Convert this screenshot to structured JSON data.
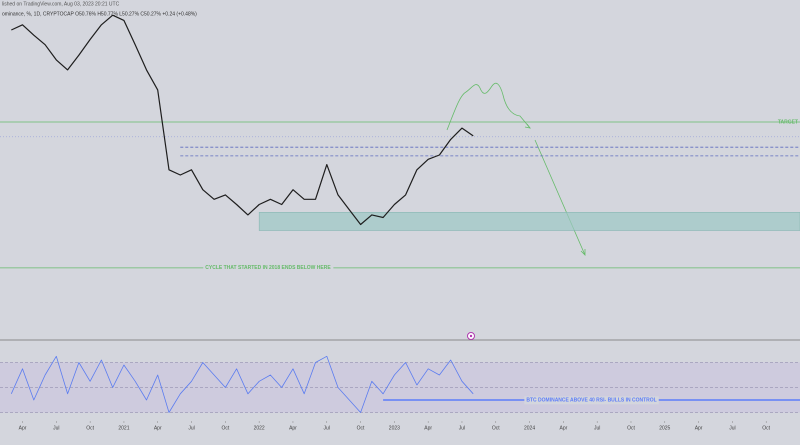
{
  "header": {
    "published": "lished on TradingView.com, Aug 03, 2023 20:21 UTC",
    "symbol": "ominance, %, 1D, CRYPTOCAP  O50.76%  H50.77%  L50.27%  C50.27%  +0.24 (+0.48%)"
  },
  "chart_data": [
    {
      "type": "line",
      "x": [
        "2020-03",
        "2020-04",
        "2020-05",
        "2020-06",
        "2020-07",
        "2020-08",
        "2020-09",
        "2020-10",
        "2020-11",
        "2020-12",
        "2021-01",
        "2021-02",
        "2021-03",
        "2021-04",
        "2021-05",
        "2021-06",
        "2021-07",
        "2021-08",
        "2021-09",
        "2021-10",
        "2021-11",
        "2021-12",
        "2022-01",
        "2022-02",
        "2022-03",
        "2022-04",
        "2022-05",
        "2022-06",
        "2022-07",
        "2022-08",
        "2022-09",
        "2022-10",
        "2022-11",
        "2022-12",
        "2023-01",
        "2023-02",
        "2023-03",
        "2023-04",
        "2023-05",
        "2023-06",
        "2023-07",
        "2023-08"
      ],
      "series": [
        {
          "color": "#1e1e1e",
          "values": [
            62.4,
            63.0,
            61.8,
            60.7,
            58.95,
            57.8,
            59.5,
            61.3,
            63.0,
            64.1,
            63.5,
            60.7,
            57.8,
            55.5,
            46.3,
            45.7,
            46.3,
            44.0,
            42.9,
            43.4,
            42.3,
            41.1,
            42.3,
            42.9,
            42.3,
            44.0,
            42.9,
            42.9,
            46.9,
            43.4,
            41.7,
            40.0,
            41.1,
            40.8,
            42.3,
            43.4,
            46.3,
            47.5,
            48.0,
            49.8,
            51.1,
            50.2
          ]
        }
      ],
      "xlim": [
        "2020-02",
        "2026-01"
      ],
      "ylim": [
        31.3,
        64.7
      ],
      "hlines": [
        {
          "value": 51.8,
          "color": "#66bb6a",
          "style": "solid",
          "label": "TARGET"
        },
        {
          "value": 50.1,
          "color": "#9fa8da",
          "style": "dotted"
        },
        {
          "value": 48.9,
          "color": "#5c6bc0",
          "style": "dashed",
          "start": "2021-06"
        },
        {
          "value": 47.9,
          "color": "#5c6bc0",
          "style": "dashed",
          "start": "2021-06"
        },
        {
          "value": 35.0,
          "color": "#66bb6a",
          "style": "solid",
          "label": "CYCLE THAT STARTED IN 2018 ENDS BELOW HERE"
        }
      ],
      "zone": {
        "from": 39.3,
        "to": 41.4,
        "start": "2022-01",
        "color": "#9cc7c4"
      }
    },
    {
      "type": "line",
      "x": [
        "2020-03",
        "2020-04",
        "2020-05",
        "2020-06",
        "2020-07",
        "2020-08",
        "2020-09",
        "2020-10",
        "2020-11",
        "2020-12",
        "2021-01",
        "2021-02",
        "2021-03",
        "2021-04",
        "2021-05",
        "2021-06",
        "2021-07",
        "2021-08",
        "2021-09",
        "2021-10",
        "2021-11",
        "2021-12",
        "2022-01",
        "2022-02",
        "2022-03",
        "2022-04",
        "2022-05",
        "2022-06",
        "2022-07",
        "2022-08",
        "2022-09",
        "2022-10",
        "2022-11",
        "2022-12",
        "2023-01",
        "2023-02",
        "2023-03",
        "2023-04",
        "2023-05",
        "2023-06",
        "2023-07",
        "2023-08"
      ],
      "series": [
        {
          "color": "#5b7cf0",
          "values": [
            45,
            65,
            40,
            60,
            75,
            45,
            70,
            55,
            72,
            50,
            68,
            55,
            40,
            60,
            30,
            45,
            55,
            70,
            60,
            50,
            65,
            45,
            55,
            60,
            50,
            65,
            45,
            70,
            75,
            50,
            40,
            30,
            55,
            45,
            60,
            70,
            52,
            65,
            60,
            72,
            55,
            45
          ]
        }
      ],
      "xlim": [
        "2020-02",
        "2026-01"
      ],
      "ylim": [
        24,
        84
      ],
      "band": {
        "from": 30,
        "to": 70,
        "color": "#c9c3e0"
      },
      "hlines": [
        {
          "value": 70,
          "color": "#9e9ab8",
          "style": "dashed"
        },
        {
          "value": 50,
          "color": "#9e9ab8",
          "style": "dashed"
        },
        {
          "value": 30,
          "color": "#9e9ab8",
          "style": "dashed"
        },
        {
          "value": 40,
          "color": "#5c7cfa",
          "style": "solid",
          "start": "2022-12",
          "label": "BTC DOMINANCE ABOVE 40 RSI- BULLS IN CONTROL"
        }
      ],
      "xticks": [
        {
          "value": "2020-04",
          "label": "Apr"
        },
        {
          "value": "2020-07",
          "label": "Jul"
        },
        {
          "value": "2020-10",
          "label": "Oct"
        },
        {
          "value": "2021-01",
          "label": "2021"
        },
        {
          "value": "2021-04",
          "label": "Apr"
        },
        {
          "value": "2021-07",
          "label": "Jul"
        },
        {
          "value": "2021-10",
          "label": "Oct"
        },
        {
          "value": "2022-01",
          "label": "2022"
        },
        {
          "value": "2022-04",
          "label": "Apr"
        },
        {
          "value": "2022-07",
          "label": "Jul"
        },
        {
          "value": "2022-10",
          "label": "Oct"
        },
        {
          "value": "2023-01",
          "label": "2023"
        },
        {
          "value": "2023-04",
          "label": "Apr"
        },
        {
          "value": "2023-07",
          "label": "Jul"
        },
        {
          "value": "2023-10",
          "label": "Oct"
        },
        {
          "value": "2024-01",
          "label": "2024"
        },
        {
          "value": "2024-04",
          "label": "Apr"
        },
        {
          "value": "2024-07",
          "label": "Jul"
        },
        {
          "value": "2024-10",
          "label": "Oct"
        },
        {
          "value": "2025-01",
          "label": "2025"
        },
        {
          "value": "2025-04",
          "label": "Apr"
        },
        {
          "value": "2025-07",
          "label": "Jul"
        },
        {
          "value": "2025-10",
          "label": "Oct"
        }
      ]
    }
  ]
}
